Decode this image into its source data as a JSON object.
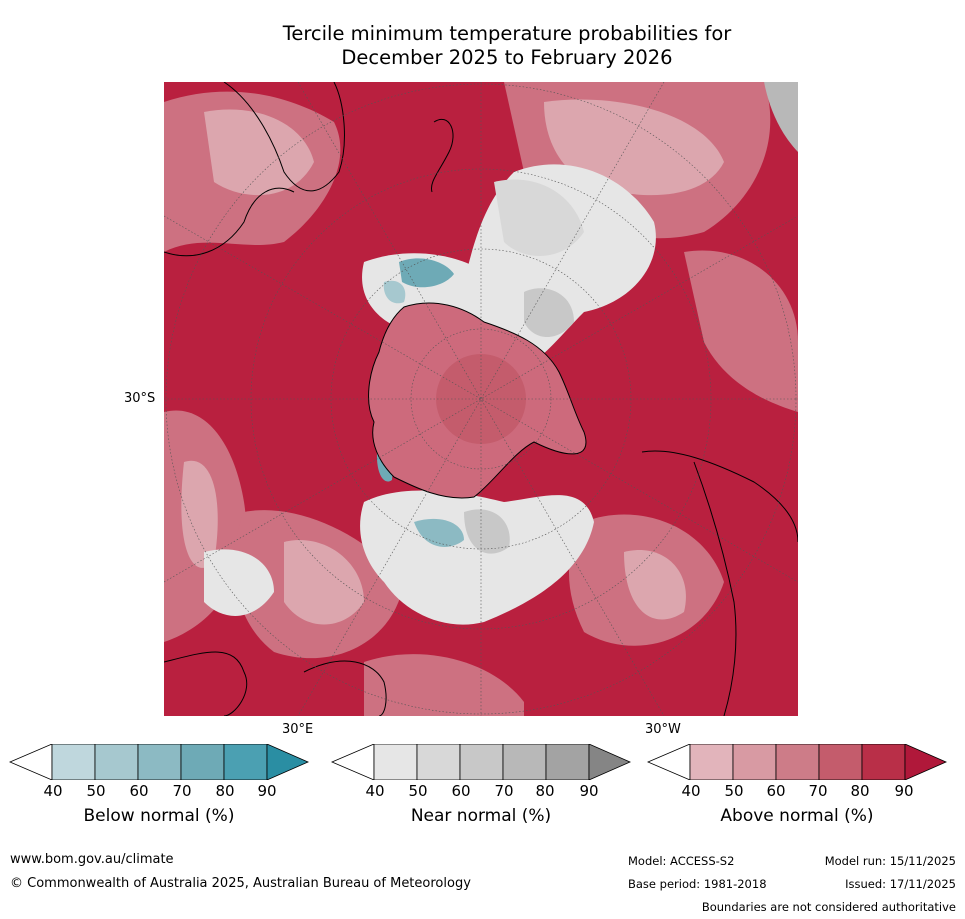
{
  "title_line1": "Tercile minimum temperature probabilities for",
  "title_line2": "December 2025 to February 2026",
  "map": {
    "lat_label": "30°S",
    "lon_label_left": "30°E",
    "lon_label_right": "30°W"
  },
  "legends": [
    {
      "title": "Below normal (%)",
      "ticks": [
        "40",
        "50",
        "60",
        "70",
        "80",
        "90"
      ],
      "colors": [
        "#ffffff",
        "#bfd7dd",
        "#a6c8cf",
        "#8cbac3",
        "#6eaab6",
        "#4ba0b2",
        "#2a8ea3"
      ]
    },
    {
      "title": "Near normal (%)",
      "ticks": [
        "40",
        "50",
        "60",
        "70",
        "80",
        "90"
      ],
      "colors": [
        "#ffffff",
        "#e6e6e6",
        "#d8d8d8",
        "#c8c8c8",
        "#b8b8b8",
        "#a3a3a3",
        "#858585"
      ]
    },
    {
      "title": "Above normal (%)",
      "ticks": [
        "40",
        "50",
        "60",
        "70",
        "80",
        "90"
      ],
      "colors": [
        "#ffffff",
        "#e2b4bb",
        "#d89aa3",
        "#cd7c88",
        "#c45c6c",
        "#b92f48",
        "#b0183a"
      ]
    }
  ],
  "footer": {
    "url": "www.bom.gov.au/climate",
    "copyright": "© Commonwealth of Australia 2025, Australian Bureau of Meteorology",
    "model": "Model: ACCESS-S2",
    "model_run": "Model run: 15/11/2025",
    "base_period": "Base period: 1981-2018",
    "issued": "Issued: 17/11/2025",
    "disclaimer": "Boundaries are not considered authoritative"
  }
}
